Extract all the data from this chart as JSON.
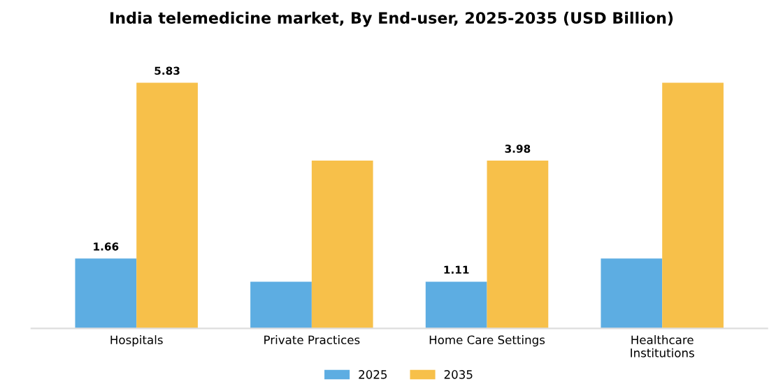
{
  "chart_data": {
    "type": "bar",
    "title": "India telemedicine market, By End-user, 2025-2035 (USD Billion)",
    "categories": [
      "Hospitals",
      "Private Practices",
      "Home Care Settings",
      "Healthcare\nInstitutions"
    ],
    "series": [
      {
        "name": "2025",
        "color": "#5dade2",
        "values": [
          1.66,
          1.11,
          1.11,
          1.66
        ],
        "value_labels": [
          "1.66",
          null,
          "1.11",
          null
        ]
      },
      {
        "name": "2035",
        "color": "#f7c04a",
        "values": [
          5.83,
          3.98,
          3.98,
          5.83
        ],
        "value_labels": [
          "5.83",
          null,
          "3.98",
          null
        ]
      }
    ],
    "grid": false,
    "legend": "bottom"
  }
}
